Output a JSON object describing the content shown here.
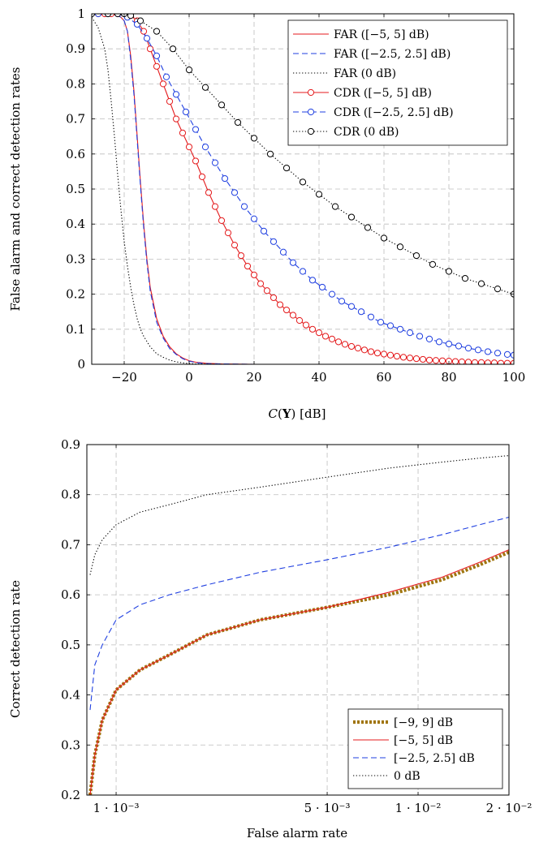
{
  "chart_data": [
    {
      "type": "line",
      "title": "",
      "xlabel": "C(Y) [dB]",
      "ylabel": "False alarm and correct detection rates",
      "xlim": [
        -30,
        100
      ],
      "ylim": [
        0,
        1
      ],
      "xticks": [
        -20,
        0,
        20,
        40,
        60,
        80,
        100
      ],
      "xtick_labels": [
        "−20",
        "0",
        "20",
        "40",
        "60",
        "80",
        "100"
      ],
      "yticks": [
        0,
        0.1,
        0.2,
        0.3,
        0.4,
        0.5,
        0.6,
        0.7,
        0.8,
        0.9,
        1
      ],
      "ytick_labels": [
        "0",
        "0.1",
        "0.2",
        "0.3",
        "0.4",
        "0.5",
        "0.6",
        "0.7",
        "0.8",
        "0.9",
        "1"
      ],
      "grid": true,
      "legend_position": "top-right",
      "series": [
        {
          "name": "FAR ([−5, 5] dB)",
          "color": "#e41a1c",
          "style": "solid",
          "marker": "none",
          "x": [
            -28,
            -26,
            -24,
            -22,
            -21,
            -20,
            -19,
            -18,
            -17,
            -16,
            -15,
            -14,
            -13,
            -12,
            -10,
            -8,
            -6,
            -4,
            -2,
            0,
            2,
            5,
            10,
            20,
            40,
            60,
            80,
            100
          ],
          "y": [
            1,
            1,
            1,
            0.995,
            0.99,
            0.98,
            0.95,
            0.88,
            0.78,
            0.65,
            0.52,
            0.4,
            0.3,
            0.22,
            0.13,
            0.08,
            0.05,
            0.03,
            0.018,
            0.01,
            0.006,
            0.003,
            0.001,
            0,
            0,
            0,
            0,
            0
          ]
        },
        {
          "name": "FAR ([−2.5, 2.5] dB)",
          "color": "#1f3fe0",
          "style": "dashed",
          "marker": "none",
          "x": [
            -28,
            -26,
            -24,
            -22,
            -21,
            -20,
            -19,
            -18,
            -17,
            -16,
            -15,
            -14,
            -13,
            -12,
            -10,
            -8,
            -6,
            -4,
            -2,
            0,
            2,
            5,
            10,
            20,
            40,
            60,
            80,
            100
          ],
          "y": [
            1,
            1,
            1,
            0.995,
            0.99,
            0.98,
            0.95,
            0.87,
            0.77,
            0.64,
            0.51,
            0.39,
            0.29,
            0.21,
            0.12,
            0.075,
            0.045,
            0.028,
            0.016,
            0.009,
            0.005,
            0.002,
            0.001,
            0,
            0,
            0,
            0,
            0
          ]
        },
        {
          "name": "FAR (0 dB)",
          "color": "#000000",
          "style": "dotted",
          "marker": "none",
          "x": [
            -30,
            -28,
            -26,
            -25,
            -24,
            -23,
            -22,
            -21,
            -20,
            -19,
            -18,
            -17,
            -16,
            -15,
            -14,
            -12,
            -10,
            -8,
            -6,
            -4,
            -2,
            0,
            2,
            5,
            10,
            20,
            40,
            60,
            80,
            100
          ],
          "y": [
            0.99,
            0.96,
            0.9,
            0.84,
            0.75,
            0.65,
            0.54,
            0.44,
            0.35,
            0.28,
            0.22,
            0.17,
            0.13,
            0.1,
            0.08,
            0.05,
            0.03,
            0.02,
            0.012,
            0.007,
            0.004,
            0.002,
            0.001,
            0.0005,
            0,
            0,
            0,
            0,
            0,
            0
          ]
        },
        {
          "name": "CDR ([−5, 5] dB)",
          "color": "#e41a1c",
          "style": "solid",
          "marker": "circle",
          "x": [
            -28,
            -26,
            -24,
            -22,
            -20,
            -18,
            -16,
            -14,
            -12,
            -10,
            -8,
            -6,
            -4,
            -2,
            0,
            2,
            4,
            6,
            8,
            10,
            12,
            14,
            16,
            18,
            20,
            22,
            24,
            26,
            28,
            30,
            32,
            34,
            36,
            38,
            40,
            42,
            44,
            46,
            48,
            50,
            52,
            54,
            56,
            58,
            60,
            62,
            64,
            66,
            68,
            70,
            72,
            74,
            76,
            78,
            80,
            82,
            84,
            86,
            88,
            90,
            92,
            94,
            96,
            98,
            100
          ],
          "y": [
            1,
            1,
            1,
            1,
            1,
            0.995,
            0.98,
            0.95,
            0.9,
            0.85,
            0.8,
            0.75,
            0.7,
            0.66,
            0.62,
            0.58,
            0.535,
            0.49,
            0.45,
            0.41,
            0.375,
            0.34,
            0.31,
            0.28,
            0.255,
            0.23,
            0.21,
            0.19,
            0.17,
            0.155,
            0.14,
            0.125,
            0.112,
            0.1,
            0.09,
            0.08,
            0.072,
            0.064,
            0.057,
            0.051,
            0.046,
            0.041,
            0.036,
            0.032,
            0.029,
            0.026,
            0.023,
            0.02,
            0.018,
            0.016,
            0.014,
            0.012,
            0.011,
            0.01,
            0.009,
            0.008,
            0.007,
            0.006,
            0.005,
            0.005,
            0.004,
            0.004,
            0.003,
            0.003,
            0.003
          ]
        },
        {
          "name": "CDR ([−2.5, 2.5] dB)",
          "color": "#1f3fe0",
          "style": "dashed",
          "marker": "circle",
          "x": [
            -28,
            -25,
            -22,
            -19,
            -16,
            -13,
            -10,
            -7,
            -4,
            -1,
            2,
            5,
            8,
            11,
            14,
            17,
            20,
            23,
            26,
            29,
            32,
            35,
            38,
            41,
            44,
            47,
            50,
            53,
            56,
            59,
            62,
            65,
            68,
            71,
            74,
            77,
            80,
            83,
            86,
            89,
            92,
            95,
            98,
            100
          ],
          "y": [
            1,
            1,
            1,
            0.99,
            0.97,
            0.93,
            0.88,
            0.82,
            0.77,
            0.72,
            0.67,
            0.62,
            0.575,
            0.53,
            0.49,
            0.45,
            0.415,
            0.38,
            0.35,
            0.32,
            0.29,
            0.265,
            0.24,
            0.22,
            0.2,
            0.18,
            0.165,
            0.15,
            0.135,
            0.12,
            0.11,
            0.1,
            0.09,
            0.08,
            0.072,
            0.064,
            0.058,
            0.052,
            0.046,
            0.041,
            0.036,
            0.032,
            0.028,
            0.026
          ]
        },
        {
          "name": "CDR (0 dB)",
          "color": "#000000",
          "style": "dotted",
          "marker": "circle",
          "x": [
            -30,
            -25,
            -22,
            -20,
            -18,
            -15,
            -10,
            -5,
            0,
            5,
            10,
            15,
            20,
            25,
            30,
            35,
            40,
            45,
            50,
            55,
            60,
            65,
            70,
            75,
            80,
            85,
            90,
            95,
            100
          ],
          "y": [
            1,
            1,
            1,
            1,
            0.995,
            0.98,
            0.95,
            0.9,
            0.84,
            0.79,
            0.74,
            0.69,
            0.645,
            0.6,
            0.56,
            0.52,
            0.485,
            0.45,
            0.42,
            0.39,
            0.36,
            0.335,
            0.31,
            0.285,
            0.265,
            0.245,
            0.23,
            0.215,
            0.2
          ]
        }
      ]
    },
    {
      "type": "line",
      "title": "",
      "xlabel": "False alarm rate",
      "ylabel": "Correct detection rate",
      "xlim": [
        0.0008,
        0.02
      ],
      "ylim": [
        0.2,
        0.9
      ],
      "xscale": "log",
      "xticks": [
        0.001,
        0.005,
        0.01,
        0.02
      ],
      "xtick_labels": [
        "1 · 10⁻³",
        "5 · 10⁻³",
        "1 · 10⁻²",
        "2 · 10⁻²"
      ],
      "yticks": [
        0.2,
        0.3,
        0.4,
        0.5,
        0.6,
        0.7,
        0.8,
        0.9
      ],
      "ytick_labels": [
        "0.2",
        "0.3",
        "0.4",
        "0.5",
        "0.6",
        "0.7",
        "0.8",
        "0.9"
      ],
      "grid": true,
      "legend_position": "bottom-right",
      "series": [
        {
          "name": "[−9, 9] dB",
          "color": "#a0750f",
          "style": "thick-dotted",
          "x": [
            0.00082,
            0.00085,
            0.0009,
            0.001,
            0.0012,
            0.0015,
            0.002,
            0.003,
            0.005,
            0.008,
            0.012,
            0.016,
            0.02
          ],
          "y": [
            0.2,
            0.28,
            0.35,
            0.41,
            0.45,
            0.48,
            0.52,
            0.55,
            0.575,
            0.6,
            0.63,
            0.66,
            0.685
          ]
        },
        {
          "name": "[−5, 5] dB",
          "color": "#e41a1c",
          "style": "solid",
          "x": [
            0.00082,
            0.00085,
            0.0009,
            0.001,
            0.0012,
            0.0015,
            0.002,
            0.003,
            0.005,
            0.008,
            0.012,
            0.016,
            0.02
          ],
          "y": [
            0.2,
            0.28,
            0.35,
            0.41,
            0.45,
            0.48,
            0.52,
            0.55,
            0.575,
            0.605,
            0.635,
            0.665,
            0.69
          ]
        },
        {
          "name": "[−2.5, 2.5] dB",
          "color": "#1f3fe0",
          "style": "dashed",
          "x": [
            0.00082,
            0.00085,
            0.0009,
            0.001,
            0.0012,
            0.0015,
            0.002,
            0.003,
            0.005,
            0.008,
            0.012,
            0.016,
            0.02
          ],
          "y": [
            0.37,
            0.46,
            0.5,
            0.55,
            0.58,
            0.6,
            0.62,
            0.645,
            0.67,
            0.695,
            0.72,
            0.74,
            0.755
          ]
        },
        {
          "name": "0 dB",
          "color": "#000000",
          "style": "dotted",
          "x": [
            0.00082,
            0.00085,
            0.0009,
            0.001,
            0.0012,
            0.0015,
            0.002,
            0.003,
            0.005,
            0.008,
            0.012,
            0.016,
            0.02
          ],
          "y": [
            0.64,
            0.68,
            0.71,
            0.74,
            0.765,
            0.78,
            0.8,
            0.815,
            0.835,
            0.853,
            0.865,
            0.873,
            0.878
          ]
        }
      ]
    }
  ]
}
